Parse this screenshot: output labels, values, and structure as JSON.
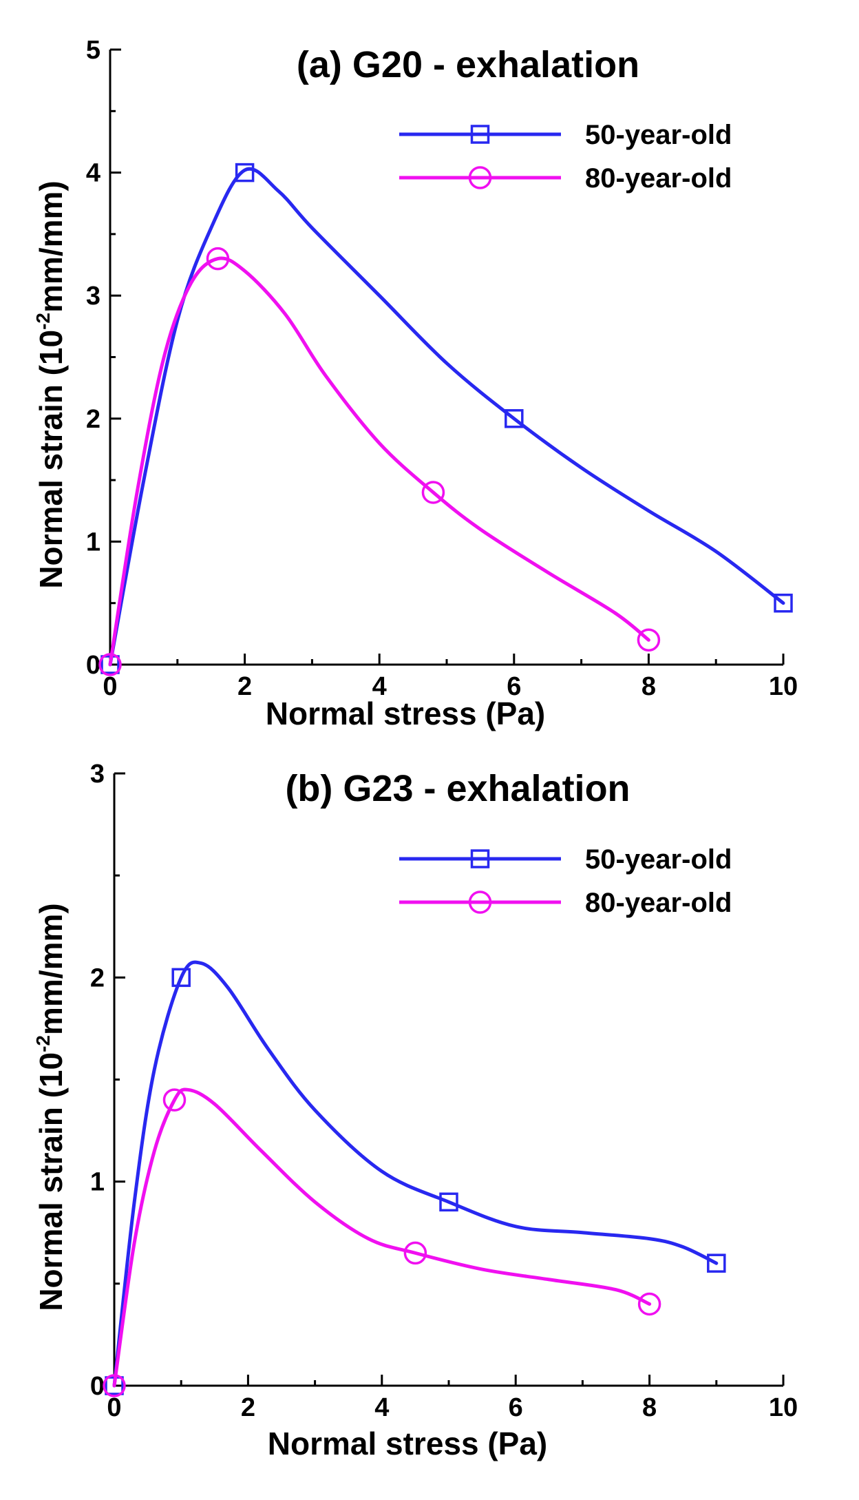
{
  "chart_data": [
    {
      "type": "line",
      "title": "(a) G20 - exhalation",
      "xlabel": "Normal stress (Pa)",
      "ylabel_main": "Normal strain (10",
      "ylabel_sup": "-2",
      "ylabel_tail": "mm/mm)",
      "xlim": [
        0,
        10
      ],
      "ylim": [
        0,
        5
      ],
      "xticks": [
        0,
        2,
        4,
        6,
        8,
        10
      ],
      "yticks": [
        0,
        1,
        2,
        3,
        4,
        5
      ],
      "legend": "top-right",
      "series": [
        {
          "name": "50-year-old",
          "color": "#2828f0",
          "marker": "square",
          "points": [
            [
              0,
              0
            ],
            [
              2,
              4.0
            ],
            [
              6,
              2.0
            ],
            [
              10,
              0.5
            ]
          ],
          "curve": [
            [
              0,
              0
            ],
            [
              0.5,
              1.5
            ],
            [
              1.0,
              2.8
            ],
            [
              1.5,
              3.55
            ],
            [
              2.0,
              4.02
            ],
            [
              2.5,
              3.85
            ],
            [
              3.0,
              3.55
            ],
            [
              4.0,
              3.0
            ],
            [
              5.0,
              2.45
            ],
            [
              6.0,
              2.0
            ],
            [
              7.0,
              1.6
            ],
            [
              8.0,
              1.25
            ],
            [
              9.0,
              0.92
            ],
            [
              10.0,
              0.5
            ]
          ]
        },
        {
          "name": "80-year-old",
          "color": "#f010f0",
          "marker": "circle",
          "points": [
            [
              0,
              0
            ],
            [
              1.6,
              3.3
            ],
            [
              4.8,
              1.4
            ],
            [
              8,
              0.2
            ]
          ],
          "curve": [
            [
              0,
              0
            ],
            [
              0.4,
              1.4
            ],
            [
              0.8,
              2.5
            ],
            [
              1.2,
              3.1
            ],
            [
              1.6,
              3.3
            ],
            [
              2.0,
              3.2
            ],
            [
              2.6,
              2.85
            ],
            [
              3.2,
              2.35
            ],
            [
              4.0,
              1.8
            ],
            [
              4.8,
              1.4
            ],
            [
              5.5,
              1.1
            ],
            [
              6.5,
              0.75
            ],
            [
              7.5,
              0.42
            ],
            [
              8.0,
              0.2
            ]
          ]
        }
      ]
    },
    {
      "type": "line",
      "title": "(b) G23 - exhalation",
      "xlabel": "Normal stress (Pa)",
      "ylabel_main": "Normal strain (10",
      "ylabel_sup": "-2",
      "ylabel_tail": "mm/mm)",
      "xlim": [
        0,
        10
      ],
      "ylim": [
        0,
        3
      ],
      "xticks": [
        0,
        2,
        4,
        6,
        8,
        10
      ],
      "yticks": [
        0,
        1,
        2,
        3
      ],
      "legend": "top-right",
      "series": [
        {
          "name": "50-year-old",
          "color": "#2828f0",
          "marker": "square",
          "points": [
            [
              0,
              0
            ],
            [
              1,
              2.0
            ],
            [
              5,
              0.9
            ],
            [
              9,
              0.6
            ]
          ],
          "curve": [
            [
              0,
              0
            ],
            [
              0.3,
              0.9
            ],
            [
              0.6,
              1.55
            ],
            [
              1.0,
              2.0
            ],
            [
              1.3,
              2.07
            ],
            [
              1.7,
              1.95
            ],
            [
              2.3,
              1.65
            ],
            [
              3.0,
              1.35
            ],
            [
              4.0,
              1.05
            ],
            [
              5.0,
              0.9
            ],
            [
              6.0,
              0.78
            ],
            [
              7.0,
              0.75
            ],
            [
              8.0,
              0.72
            ],
            [
              8.5,
              0.68
            ],
            [
              9.0,
              0.6
            ]
          ]
        },
        {
          "name": "80-year-old",
          "color": "#f010f0",
          "marker": "circle",
          "points": [
            [
              0,
              0
            ],
            [
              0.9,
              1.4
            ],
            [
              4.5,
              0.65
            ],
            [
              8,
              0.4
            ]
          ],
          "curve": [
            [
              0,
              0
            ],
            [
              0.3,
              0.7
            ],
            [
              0.6,
              1.15
            ],
            [
              0.9,
              1.4
            ],
            [
              1.1,
              1.45
            ],
            [
              1.5,
              1.38
            ],
            [
              2.2,
              1.15
            ],
            [
              3.0,
              0.9
            ],
            [
              3.8,
              0.72
            ],
            [
              4.5,
              0.65
            ],
            [
              5.5,
              0.57
            ],
            [
              6.5,
              0.52
            ],
            [
              7.5,
              0.47
            ],
            [
              8.0,
              0.4
            ]
          ]
        }
      ]
    }
  ]
}
